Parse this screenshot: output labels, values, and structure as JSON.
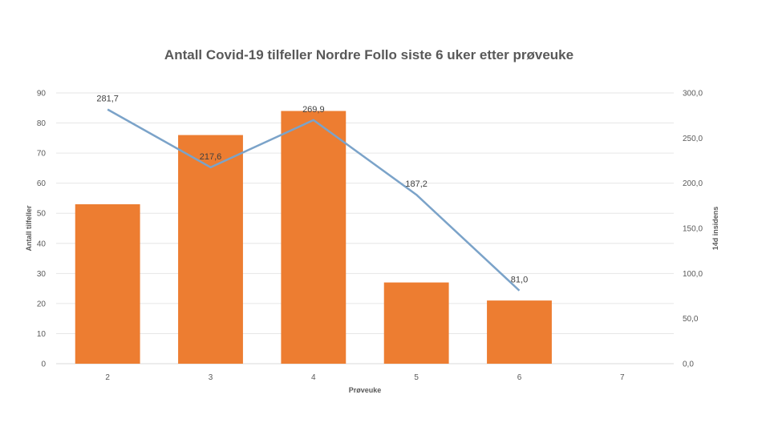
{
  "chart_data": {
    "type": "bar+line",
    "title": "Antall Covid-19 tilfeller Nordre Follo siste 6 uker etter prøveuke",
    "xlabel": "Prøveuke",
    "ylabel": "Antall tilfeller",
    "y2label": "14d insidens",
    "categories": [
      "2",
      "3",
      "4",
      "5",
      "6",
      "7"
    ],
    "ylim": [
      0,
      90
    ],
    "y_ticks": [
      "0",
      "10",
      "20",
      "30",
      "40",
      "50",
      "60",
      "70",
      "80",
      "90"
    ],
    "y2lim": [
      0,
      300
    ],
    "y2_ticks": [
      "0,0",
      "50,0",
      "100,0",
      "150,0",
      "200,0",
      "250,0",
      "300,0"
    ],
    "grid": true,
    "series": [
      {
        "type": "bar",
        "axis": "left",
        "color": "#ED7D31",
        "values": [
          53,
          76,
          84,
          27,
          21,
          null
        ]
      },
      {
        "type": "line",
        "axis": "right",
        "color": "#7BA3C9",
        "values": [
          281.7,
          217.6,
          269.9,
          187.2,
          81.0,
          null
        ],
        "labels": [
          "281,7",
          "217,6",
          "269,9",
          "187,2",
          "81,0",
          ""
        ]
      }
    ]
  }
}
